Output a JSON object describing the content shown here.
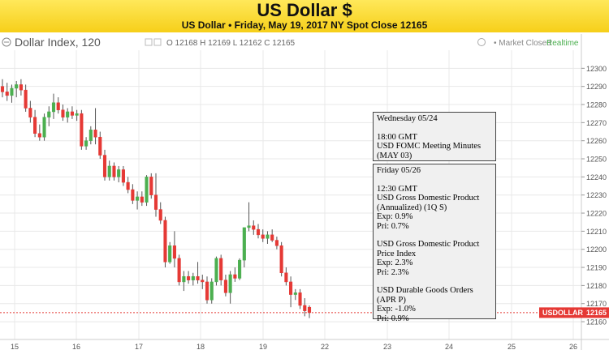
{
  "banner": {
    "title": "US Dollar $",
    "subtitle": "US Dollar • Friday, May 19, 2017 NY Spot Close 12165"
  },
  "header": {
    "symbol": "Dollar Index, 120",
    "ohlc_text": "O 12168  H 12169  L 12162  C 12165",
    "market_status": "Market Closed",
    "realtime": "Realtime"
  },
  "price_tag": {
    "label": "USDOLLAR",
    "value": "12165"
  },
  "events": [
    {
      "lines": [
        "Wednesday 05/24",
        "",
        "18:00 GMT",
        "USD FOMC Meeting Minutes",
        "(MAY 03)"
      ]
    },
    {
      "lines": [
        "Friday 05/26",
        "",
        "12:30 GMT",
        "USD Gross Domestic Product",
        "(Annualized) (1Q S)",
        "Exp: 0.9%",
        "Pri: 0.7%",
        "",
        "USD Gross Domestic Product",
        "Price Index",
        "Exp: 2.3%",
        "Pri: 2.3%",
        "",
        "USD Durable Goods Orders",
        "(APR P)",
        "Exp: -1.0%",
        "Pri: 0.9%"
      ]
    }
  ],
  "chart_data": {
    "type": "candlestick",
    "title": "Dollar Index, 120",
    "x_ticks": [
      "15",
      "16",
      "17",
      "18",
      "19",
      "22",
      "23",
      "24",
      "25",
      "26"
    ],
    "y_ticks": [
      12160,
      12170,
      12180,
      12190,
      12200,
      12210,
      12220,
      12230,
      12240,
      12250,
      12260,
      12270,
      12280,
      12290,
      12300
    ],
    "ylim": [
      12156,
      12310
    ],
    "last_close": 12165,
    "colors": {
      "up": "#4caf50",
      "down": "#e53935",
      "tag": "#e53935",
      "grid": "#e8e8e8"
    },
    "candles": [
      {
        "o": 12290,
        "h": 12294,
        "l": 12284,
        "c": 12287
      },
      {
        "o": 12287,
        "h": 12292,
        "l": 12282,
        "c": 12285
      },
      {
        "o": 12285,
        "h": 12291,
        "l": 12281,
        "c": 12289
      },
      {
        "o": 12289,
        "h": 12293,
        "l": 12284,
        "c": 12291
      },
      {
        "o": 12291,
        "h": 12294,
        "l": 12285,
        "c": 12288
      },
      {
        "o": 12288,
        "h": 12291,
        "l": 12276,
        "c": 12278
      },
      {
        "o": 12278,
        "h": 12282,
        "l": 12270,
        "c": 12273
      },
      {
        "o": 12273,
        "h": 12277,
        "l": 12262,
        "c": 12264
      },
      {
        "o": 12264,
        "h": 12269,
        "l": 12260,
        "c": 12262
      },
      {
        "o": 12262,
        "h": 12275,
        "l": 12260,
        "c": 12273
      },
      {
        "o": 12273,
        "h": 12279,
        "l": 12268,
        "c": 12276
      },
      {
        "o": 12276,
        "h": 12286,
        "l": 12272,
        "c": 12281
      },
      {
        "o": 12281,
        "h": 12284,
        "l": 12275,
        "c": 12277
      },
      {
        "o": 12277,
        "h": 12280,
        "l": 12271,
        "c": 12273
      },
      {
        "o": 12273,
        "h": 12278,
        "l": 12270,
        "c": 12276
      },
      {
        "o": 12276,
        "h": 12279,
        "l": 12272,
        "c": 12274
      },
      {
        "o": 12274,
        "h": 12277,
        "l": 12271,
        "c": 12275
      },
      {
        "o": 12275,
        "h": 12277,
        "l": 12255,
        "c": 12257
      },
      {
        "o": 12257,
        "h": 12262,
        "l": 12255,
        "c": 12260
      },
      {
        "o": 12260,
        "h": 12268,
        "l": 12258,
        "c": 12266
      },
      {
        "o": 12266,
        "h": 12278,
        "l": 12258,
        "c": 12262
      },
      {
        "o": 12262,
        "h": 12265,
        "l": 12250,
        "c": 12252
      },
      {
        "o": 12252,
        "h": 12255,
        "l": 12238,
        "c": 12240
      },
      {
        "o": 12240,
        "h": 12249,
        "l": 12238,
        "c": 12246
      },
      {
        "o": 12246,
        "h": 12248,
        "l": 12238,
        "c": 12240
      },
      {
        "o": 12240,
        "h": 12246,
        "l": 12237,
        "c": 12244
      },
      {
        "o": 12244,
        "h": 12246,
        "l": 12235,
        "c": 12237
      },
      {
        "o": 12237,
        "h": 12240,
        "l": 12231,
        "c": 12233
      },
      {
        "o": 12233,
        "h": 12236,
        "l": 12225,
        "c": 12227
      },
      {
        "o": 12227,
        "h": 12232,
        "l": 12222,
        "c": 12229
      },
      {
        "o": 12229,
        "h": 12232,
        "l": 12224,
        "c": 12226
      },
      {
        "o": 12226,
        "h": 12241,
        "l": 12224,
        "c": 12240
      },
      {
        "o": 12240,
        "h": 12242,
        "l": 12228,
        "c": 12230
      },
      {
        "o": 12230,
        "h": 12242,
        "l": 12218,
        "c": 12222
      },
      {
        "o": 12222,
        "h": 12226,
        "l": 12214,
        "c": 12216
      },
      {
        "o": 12216,
        "h": 12218,
        "l": 12190,
        "c": 12193
      },
      {
        "o": 12193,
        "h": 12204,
        "l": 12192,
        "c": 12202
      },
      {
        "o": 12202,
        "h": 12210,
        "l": 12190,
        "c": 12195
      },
      {
        "o": 12195,
        "h": 12197,
        "l": 12180,
        "c": 12182
      },
      {
        "o": 12182,
        "h": 12188,
        "l": 12177,
        "c": 12185
      },
      {
        "o": 12185,
        "h": 12188,
        "l": 12181,
        "c": 12183
      },
      {
        "o": 12183,
        "h": 12187,
        "l": 12180,
        "c": 12185
      },
      {
        "o": 12185,
        "h": 12193,
        "l": 12181,
        "c": 12183
      },
      {
        "o": 12183,
        "h": 12186,
        "l": 12178,
        "c": 12182
      },
      {
        "o": 12182,
        "h": 12185,
        "l": 12170,
        "c": 12172
      },
      {
        "o": 12172,
        "h": 12184,
        "l": 12170,
        "c": 12182
      },
      {
        "o": 12182,
        "h": 12196,
        "l": 12180,
        "c": 12195
      },
      {
        "o": 12195,
        "h": 12197,
        "l": 12180,
        "c": 12183
      },
      {
        "o": 12183,
        "h": 12186,
        "l": 12174,
        "c": 12176
      },
      {
        "o": 12176,
        "h": 12188,
        "l": 12170,
        "c": 12186
      },
      {
        "o": 12186,
        "h": 12190,
        "l": 12182,
        "c": 12184
      },
      {
        "o": 12184,
        "h": 12195,
        "l": 12183,
        "c": 12194
      },
      {
        "o": 12194,
        "h": 12212,
        "l": 12190,
        "c": 12212
      },
      {
        "o": 12212,
        "h": 12226,
        "l": 12210,
        "c": 12213
      },
      {
        "o": 12213,
        "h": 12216,
        "l": 12208,
        "c": 12211
      },
      {
        "o": 12211,
        "h": 12214,
        "l": 12206,
        "c": 12208
      },
      {
        "o": 12208,
        "h": 12211,
        "l": 12204,
        "c": 12206
      },
      {
        "o": 12206,
        "h": 12210,
        "l": 12203,
        "c": 12208
      },
      {
        "o": 12208,
        "h": 12211,
        "l": 12204,
        "c": 12205
      },
      {
        "o": 12205,
        "h": 12207,
        "l": 12200,
        "c": 12202
      },
      {
        "o": 12202,
        "h": 12204,
        "l": 12185,
        "c": 12187
      },
      {
        "o": 12187,
        "h": 12190,
        "l": 12180,
        "c": 12182
      },
      {
        "o": 12182,
        "h": 12185,
        "l": 12168,
        "c": 12175
      },
      {
        "o": 12175,
        "h": 12178,
        "l": 12172,
        "c": 12176
      },
      {
        "o": 12176,
        "h": 12178,
        "l": 12167,
        "c": 12169
      },
      {
        "o": 12169,
        "h": 12173,
        "l": 12163,
        "c": 12166
      },
      {
        "o": 12168,
        "h": 12169,
        "l": 12162,
        "c": 12165
      }
    ]
  }
}
